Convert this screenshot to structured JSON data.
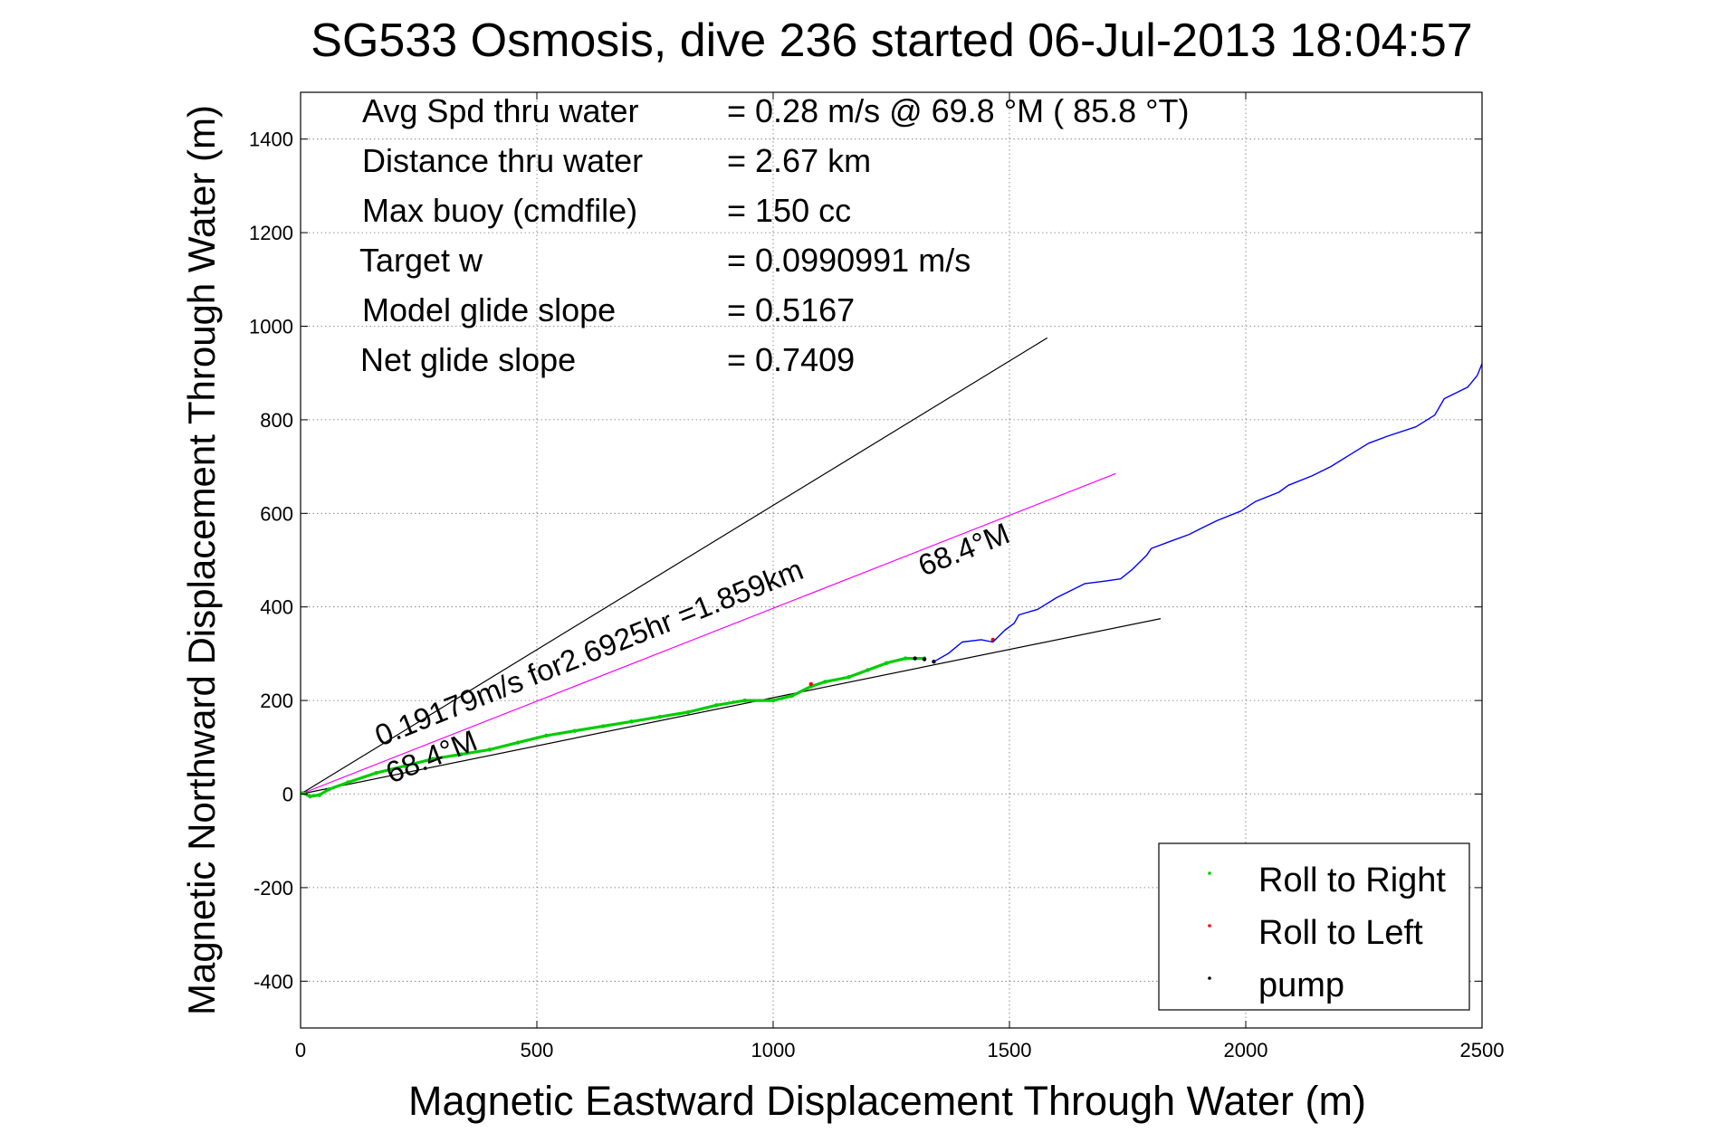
{
  "chart_data": {
    "type": "line",
    "title": "SG533 Osmosis, dive 236 started 06-Jul-2013 18:04:57",
    "xlabel": "Magnetic Eastward Displacement Through Water (m)",
    "ylabel": "Magnetic Northward Displacement Through Water (m)",
    "xlim": [
      0,
      2500
    ],
    "ylim": [
      -500,
      1500
    ],
    "xticks": [
      "0",
      "500",
      "1000",
      "1500",
      "2000",
      "2500"
    ],
    "yticks": [
      "-400",
      "-200",
      "0",
      "200",
      "400",
      "600",
      "800",
      "1000",
      "1200",
      "1400"
    ],
    "grid": true,
    "legend_position": "bottom-right",
    "annotations": {
      "rows": [
        {
          "label": "Avg Spd thru water",
          "value": "=  0.28 m/s @  69.8 °M ( 85.8 °T)"
        },
        {
          "label": "Distance thru water",
          "value": "=  2.67 km"
        },
        {
          "label": "Max buoy (cmdfile)",
          "value": "= 150 cc"
        },
        {
          "label": "Target w",
          "value": "= 0.0990991 m/s"
        },
        {
          "label": "Model glide slope",
          "value": "= 0.5167"
        },
        {
          "label": "Net glide slope",
          "value": "= 0.7409"
        }
      ],
      "speed_text": "0.19179m/s for2.6925hr =1.859km",
      "heading_upper": "68.4°M",
      "heading_lower": "68.4°M"
    },
    "reference_lines": [
      {
        "name": "upper",
        "color": "#000000",
        "x": [
          0,
          1580
        ],
        "y": [
          0,
          975
        ]
      },
      {
        "name": "lower",
        "color": "#000000",
        "x": [
          0,
          1820
        ],
        "y": [
          0,
          375
        ]
      },
      {
        "name": "magenta",
        "color": "#ff00ff",
        "x": [
          0,
          1725
        ],
        "y": [
          0,
          685
        ]
      }
    ],
    "series": [
      {
        "name": "Roll to Right",
        "color": "#00cc00",
        "marker": "point",
        "x": [
          5,
          20,
          40,
          60,
          100,
          160,
          220,
          280,
          340,
          400,
          460,
          520,
          580,
          640,
          700,
          760,
          820,
          880,
          940,
          1000,
          1040,
          1080,
          1110,
          1160,
          1200,
          1240,
          1280,
          1320
        ],
        "y": [
          2,
          -5,
          -2,
          10,
          25,
          45,
          60,
          75,
          85,
          95,
          110,
          125,
          135,
          145,
          155,
          165,
          175,
          190,
          200,
          200,
          210,
          230,
          240,
          250,
          265,
          280,
          290,
          290
        ]
      },
      {
        "name": "Roll to Left",
        "color": "#ff0000",
        "marker": "point",
        "x": [
          1080,
          1465
        ],
        "y": [
          235,
          330
        ]
      },
      {
        "name": "pump",
        "color": "#000000",
        "marker": "point",
        "x": [
          1300,
          1320,
          1340
        ],
        "y": [
          290,
          288,
          283
        ]
      },
      {
        "color": "#0000ff",
        "x": [
          1340,
          1370,
          1400,
          1440,
          1465,
          1490,
          1510,
          1520,
          1560,
          1600,
          1640,
          1660,
          1700,
          1735,
          1760,
          1790,
          1800,
          1840,
          1880,
          1910,
          1940,
          1990,
          2020,
          2070,
          2090,
          2140,
          2180,
          2220,
          2260,
          2300,
          2360,
          2400,
          2420,
          2470,
          2490,
          2500
        ],
        "y": [
          283,
          300,
          325,
          330,
          325,
          350,
          365,
          383,
          395,
          420,
          440,
          450,
          455,
          460,
          480,
          510,
          525,
          540,
          555,
          570,
          585,
          605,
          625,
          645,
          660,
          680,
          700,
          725,
          750,
          765,
          785,
          810,
          845,
          870,
          895,
          920
        ]
      }
    ]
  }
}
